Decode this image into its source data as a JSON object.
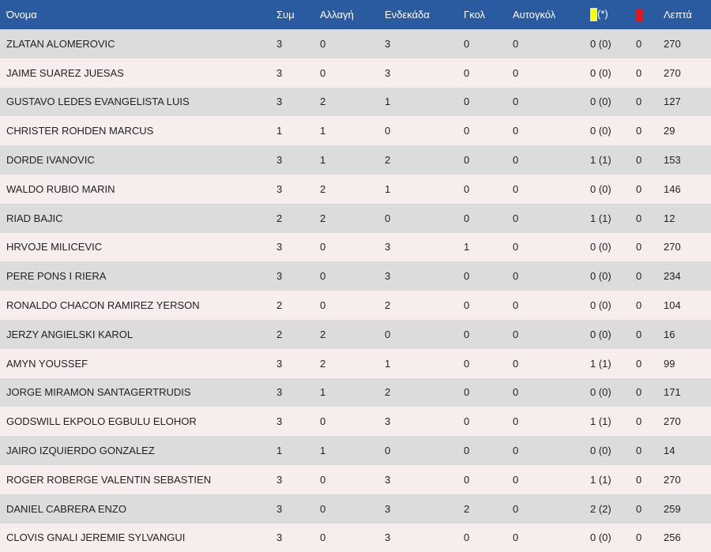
{
  "colors": {
    "header_bg": "#2a5aa0",
    "row_odd": "#dcdcdc",
    "row_even": "#f7eded",
    "yellow_card": "#ffff00",
    "red_card": "#ee1111"
  },
  "headers": {
    "name": "Όνομα",
    "apps": "Συμ",
    "subs": "Αλλαγή",
    "starts": "Ενδεκάδα",
    "goals": "Γκολ",
    "own_goals": "Αυτογκόλ",
    "yellow_suffix": "(*)",
    "minutes": "Λεπτά"
  },
  "rows": [
    {
      "name": "ZLATAN ALOMEROVIC",
      "apps": "3",
      "subs": "0",
      "starts": "3",
      "goals": "0",
      "own_goals": "0",
      "yellow": "0 (0)",
      "red": "0",
      "minutes": "270"
    },
    {
      "name": "JAIME SUAREZ JUESAS",
      "apps": "3",
      "subs": "0",
      "starts": "3",
      "goals": "0",
      "own_goals": "0",
      "yellow": "0 (0)",
      "red": "0",
      "minutes": "270"
    },
    {
      "name": "GUSTAVO LEDES EVANGELISTA LUIS",
      "apps": "3",
      "subs": "2",
      "starts": "1",
      "goals": "0",
      "own_goals": "0",
      "yellow": "0 (0)",
      "red": "0",
      "minutes": "127"
    },
    {
      "name": "CHRISTER ROHDEN MARCUS",
      "apps": "1",
      "subs": "1",
      "starts": "0",
      "goals": "0",
      "own_goals": "0",
      "yellow": "0 (0)",
      "red": "0",
      "minutes": "29"
    },
    {
      "name": "DORDE IVANOVIC",
      "apps": "3",
      "subs": "1",
      "starts": "2",
      "goals": "0",
      "own_goals": "0",
      "yellow": "1 (1)",
      "red": "0",
      "minutes": "153"
    },
    {
      "name": "WALDO RUBIO MARIN",
      "apps": "3",
      "subs": "2",
      "starts": "1",
      "goals": "0",
      "own_goals": "0",
      "yellow": "0 (0)",
      "red": "0",
      "minutes": "146"
    },
    {
      "name": "RIAD BAJIC",
      "apps": "2",
      "subs": "2",
      "starts": "0",
      "goals": "0",
      "own_goals": "0",
      "yellow": "1 (1)",
      "red": "0",
      "minutes": "12"
    },
    {
      "name": "HRVOJE MILICEVIC",
      "apps": "3",
      "subs": "0",
      "starts": "3",
      "goals": "1",
      "own_goals": "0",
      "yellow": "0 (0)",
      "red": "0",
      "minutes": "270"
    },
    {
      "name": "PERE PONS I RIERA",
      "apps": "3",
      "subs": "0",
      "starts": "3",
      "goals": "0",
      "own_goals": "0",
      "yellow": "0 (0)",
      "red": "0",
      "minutes": "234"
    },
    {
      "name": "RONALDO CHACON RAMIREZ YERSON",
      "apps": "2",
      "subs": "0",
      "starts": "2",
      "goals": "0",
      "own_goals": "0",
      "yellow": "0 (0)",
      "red": "0",
      "minutes": "104"
    },
    {
      "name": "JERZY ANGIELSKI KAROL",
      "apps": "2",
      "subs": "2",
      "starts": "0",
      "goals": "0",
      "own_goals": "0",
      "yellow": "0 (0)",
      "red": "0",
      "minutes": "16"
    },
    {
      "name": "AMYN YOUSSEF",
      "apps": "3",
      "subs": "2",
      "starts": "1",
      "goals": "0",
      "own_goals": "0",
      "yellow": "1 (1)",
      "red": "0",
      "minutes": "99"
    },
    {
      "name": "JORGE MIRAMON SANTAGERTRUDIS",
      "apps": "3",
      "subs": "1",
      "starts": "2",
      "goals": "0",
      "own_goals": "0",
      "yellow": "0 (0)",
      "red": "0",
      "minutes": "171"
    },
    {
      "name": "GODSWILL EKPOLO EGBULU ELOHOR",
      "apps": "3",
      "subs": "0",
      "starts": "3",
      "goals": "0",
      "own_goals": "0",
      "yellow": "1 (1)",
      "red": "0",
      "minutes": "270"
    },
    {
      "name": "JAIRO IZQUIERDO GONZALEZ",
      "apps": "1",
      "subs": "1",
      "starts": "0",
      "goals": "0",
      "own_goals": "0",
      "yellow": "0 (0)",
      "red": "0",
      "minutes": "14"
    },
    {
      "name": "ROGER ROBERGE VALENTIN SEBASTIEN",
      "apps": "3",
      "subs": "0",
      "starts": "3",
      "goals": "0",
      "own_goals": "0",
      "yellow": "1 (1)",
      "red": "0",
      "minutes": "270"
    },
    {
      "name": "DANIEL CABRERA ENZO",
      "apps": "3",
      "subs": "0",
      "starts": "3",
      "goals": "2",
      "own_goals": "0",
      "yellow": "2 (2)",
      "red": "0",
      "minutes": "259"
    },
    {
      "name": "CLOVIS GNALI JEREMIE SYLVANGUI",
      "apps": "3",
      "subs": "0",
      "starts": "3",
      "goals": "0",
      "own_goals": "0",
      "yellow": "0 (0)",
      "red": "0",
      "minutes": "256"
    }
  ]
}
